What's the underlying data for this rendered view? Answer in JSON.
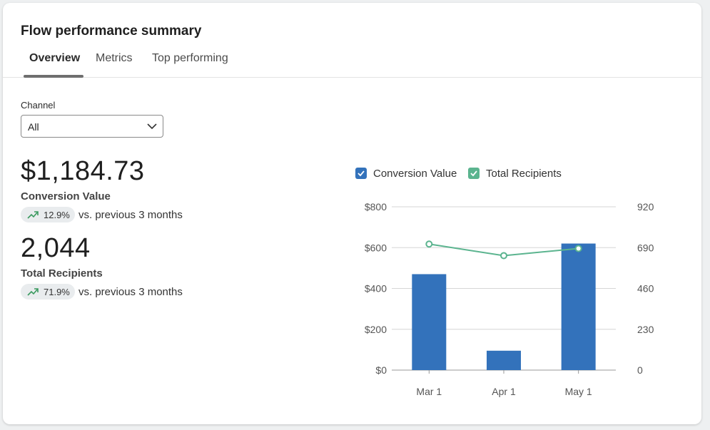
{
  "header": {
    "title": "Flow performance summary"
  },
  "tabs": [
    {
      "label": "Overview",
      "active": true
    },
    {
      "label": "Metrics",
      "active": false
    },
    {
      "label": "Top performing",
      "active": false
    }
  ],
  "filter": {
    "label": "Channel",
    "selected": "All"
  },
  "metrics": [
    {
      "value": "$1,184.73",
      "label": "Conversion Value",
      "change": "12.9%",
      "comparison": "vs. previous 3 months"
    },
    {
      "value": "2,044",
      "label": "Total Recipients",
      "change": "71.9%",
      "comparison": "vs. previous 3 months"
    }
  ],
  "colors": {
    "bar": "#3372bb",
    "line": "#5bb48f",
    "trend": "#3a9a5f"
  },
  "chart_data": {
    "type": "bar",
    "categories": [
      "Mar 1",
      "Apr 1",
      "May 1"
    ],
    "series": [
      {
        "name": "Conversion Value",
        "type": "bar",
        "axis": "left",
        "values": [
          470,
          95,
          620
        ]
      },
      {
        "name": "Total Recipients",
        "type": "line",
        "axis": "right",
        "values": [
          710,
          645,
          685
        ]
      }
    ],
    "y_left": {
      "min": 0,
      "max": 800,
      "ticks": [
        0,
        200,
        400,
        600,
        800
      ],
      "tick_labels": [
        "$0",
        "$200",
        "$400",
        "$600",
        "$800"
      ]
    },
    "y_right": {
      "min": 0,
      "max": 920,
      "ticks": [
        0,
        230,
        460,
        690,
        920
      ],
      "tick_labels": [
        "0",
        "230",
        "460",
        "690",
        "920"
      ]
    },
    "legend": [
      "Conversion Value",
      "Total Recipients"
    ],
    "grid": true
  }
}
